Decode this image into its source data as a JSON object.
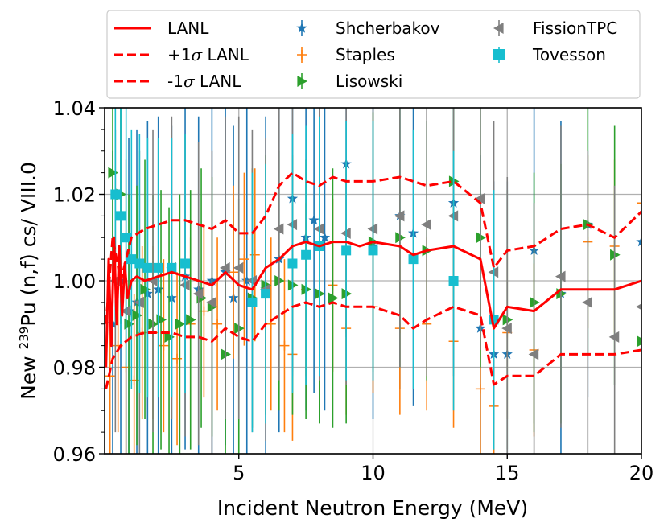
{
  "chart_data": {
    "type": "scatter",
    "xlabel": "Incident Neutron Energy (MeV)",
    "ylabel_parts": {
      "prefix": "New ",
      "isotope_sup": "239",
      "suffix": "Pu (n,f) cs/ VIII.0"
    },
    "xlim": [
      0,
      20
    ],
    "ylim": [
      0.96,
      1.04
    ],
    "x_ticks": [
      5,
      10,
      15,
      20
    ],
    "x_tick_labels": [
      "5",
      "10",
      "15",
      "20"
    ],
    "y_ticks": [
      0.96,
      0.98,
      1.0,
      1.02,
      1.04
    ],
    "y_tick_labels": [
      "0.96",
      "0.98",
      "1.00",
      "1.02",
      "1.04"
    ],
    "grid": true,
    "legend_position": "top",
    "lines": [
      {
        "name": "LANL",
        "label_main": "LANL",
        "label_prefix": "",
        "sigma": "",
        "color": "#ff0000",
        "dashed": false,
        "points": [
          [
            0.05,
            0.98
          ],
          [
            0.15,
            1.005
          ],
          [
            0.25,
            0.985
          ],
          [
            0.35,
            1.01
          ],
          [
            0.45,
            0.99
          ],
          [
            0.55,
            1.008
          ],
          [
            0.65,
            0.992
          ],
          [
            0.75,
            1.004
          ],
          [
            0.85,
            0.996
          ],
          [
            1.0,
            1.0
          ],
          [
            1.2,
            1.001
          ],
          [
            1.5,
            1.0
          ],
          [
            2.0,
            1.001
          ],
          [
            2.5,
            1.002
          ],
          [
            3.0,
            1.001
          ],
          [
            3.5,
            1.0
          ],
          [
            4.0,
            0.999
          ],
          [
            4.5,
            1.002
          ],
          [
            5.0,
            0.999
          ],
          [
            5.5,
            0.998
          ],
          [
            6.0,
            1.003
          ],
          [
            6.5,
            1.005
          ],
          [
            7.0,
            1.008
          ],
          [
            7.5,
            1.009
          ],
          [
            8.0,
            1.008
          ],
          [
            8.5,
            1.009
          ],
          [
            9.0,
            1.009
          ],
          [
            9.5,
            1.008
          ],
          [
            10.0,
            1.009
          ],
          [
            11.0,
            1.008
          ],
          [
            11.5,
            1.006
          ],
          [
            12.0,
            1.007
          ],
          [
            13.0,
            1.008
          ],
          [
            14.0,
            1.005
          ],
          [
            14.5,
            0.989
          ],
          [
            15.0,
            0.994
          ],
          [
            16.0,
            0.993
          ],
          [
            17.0,
            0.998
          ],
          [
            18.0,
            0.998
          ],
          [
            19.0,
            0.998
          ],
          [
            20.0,
            1.0
          ]
        ]
      },
      {
        "name": "+1σ LANL",
        "label_main": " LANL",
        "label_prefix": "+1",
        "sigma": "σ",
        "color": "#ff0000",
        "dashed": true,
        "points": [
          [
            0.05,
            0.99
          ],
          [
            0.3,
            1.01
          ],
          [
            0.6,
            1.0
          ],
          [
            1.0,
            1.01
          ],
          [
            1.5,
            1.012
          ],
          [
            2.0,
            1.013
          ],
          [
            2.5,
            1.014
          ],
          [
            3.0,
            1.014
          ],
          [
            3.5,
            1.013
          ],
          [
            4.0,
            1.012
          ],
          [
            4.5,
            1.014
          ],
          [
            5.0,
            1.011
          ],
          [
            5.5,
            1.011
          ],
          [
            6.0,
            1.015
          ],
          [
            6.5,
            1.022
          ],
          [
            7.0,
            1.025
          ],
          [
            7.5,
            1.023
          ],
          [
            8.0,
            1.022
          ],
          [
            8.5,
            1.024
          ],
          [
            9.0,
            1.023
          ],
          [
            10.0,
            1.023
          ],
          [
            11.0,
            1.024
          ],
          [
            12.0,
            1.022
          ],
          [
            13.0,
            1.023
          ],
          [
            14.0,
            1.018
          ],
          [
            14.5,
            1.003
          ],
          [
            15.0,
            1.007
          ],
          [
            16.0,
            1.008
          ],
          [
            17.0,
            1.012
          ],
          [
            18.0,
            1.013
          ],
          [
            19.0,
            1.01
          ],
          [
            20.0,
            1.016
          ]
        ]
      },
      {
        "name": "-1σ LANL",
        "label_main": " LANL",
        "label_prefix": "-1",
        "sigma": "σ",
        "color": "#ff0000",
        "dashed": true,
        "points": [
          [
            0.05,
            0.975
          ],
          [
            0.3,
            0.982
          ],
          [
            0.6,
            0.985
          ],
          [
            1.0,
            0.987
          ],
          [
            1.5,
            0.988
          ],
          [
            2.0,
            0.988
          ],
          [
            2.5,
            0.988
          ],
          [
            3.0,
            0.987
          ],
          [
            3.5,
            0.987
          ],
          [
            4.0,
            0.986
          ],
          [
            4.5,
            0.989
          ],
          [
            5.0,
            0.987
          ],
          [
            5.5,
            0.986
          ],
          [
            6.0,
            0.99
          ],
          [
            6.5,
            0.992
          ],
          [
            7.0,
            0.994
          ],
          [
            7.5,
            0.995
          ],
          [
            8.0,
            0.994
          ],
          [
            8.5,
            0.995
          ],
          [
            9.0,
            0.994
          ],
          [
            10.0,
            0.994
          ],
          [
            11.0,
            0.992
          ],
          [
            11.5,
            0.989
          ],
          [
            12.0,
            0.991
          ],
          [
            13.0,
            0.994
          ],
          [
            14.0,
            0.992
          ],
          [
            14.5,
            0.976
          ],
          [
            15.0,
            0.978
          ],
          [
            16.0,
            0.978
          ],
          [
            17.0,
            0.983
          ],
          [
            18.0,
            0.983
          ],
          [
            19.0,
            0.983
          ],
          [
            20.0,
            0.984
          ]
        ]
      }
    ],
    "series": [
      {
        "name": "Shcherbakov",
        "color": "#1f77b4",
        "marker": "star",
        "err": 0.04,
        "points": [
          [
            0.3,
            0.99
          ],
          [
            0.6,
            1.0
          ],
          [
            0.9,
            0.993
          ],
          [
            1.2,
            0.995
          ],
          [
            1.6,
            0.997
          ],
          [
            2.0,
            0.998
          ],
          [
            2.5,
            0.996
          ],
          [
            3.0,
            1.001
          ],
          [
            3.5,
            0.998
          ],
          [
            4.0,
            1.0
          ],
          [
            4.5,
            1.002
          ],
          [
            4.8,
            0.996
          ],
          [
            5.3,
            1.0
          ],
          [
            6.0,
            0.998
          ],
          [
            6.5,
            1.005
          ],
          [
            7.0,
            1.019
          ],
          [
            7.5,
            1.01
          ],
          [
            7.8,
            1.014
          ],
          [
            8.2,
            1.01
          ],
          [
            9.0,
            1.027
          ],
          [
            10.0,
            1.008
          ],
          [
            11.0,
            1.015
          ],
          [
            11.5,
            1.011
          ],
          [
            13.0,
            1.018
          ],
          [
            14.0,
            0.989
          ],
          [
            14.5,
            0.983
          ],
          [
            15.0,
            0.983
          ],
          [
            16.0,
            1.007
          ],
          [
            17.0,
            0.997
          ],
          [
            18.0,
            1.013
          ],
          [
            20.0,
            1.009
          ]
        ]
      },
      {
        "name": "Staples",
        "color": "#ff7f0e",
        "marker": "plus",
        "err": 0.02,
        "points": [
          [
            0.2,
            0.978
          ],
          [
            0.5,
            0.985
          ],
          [
            0.8,
            0.98
          ],
          [
            1.1,
            0.977
          ],
          [
            1.4,
            0.988
          ],
          [
            1.8,
            0.988
          ],
          [
            2.2,
            0.985
          ],
          [
            2.7,
            0.982
          ],
          [
            3.2,
            0.99
          ],
          [
            3.7,
            0.993
          ],
          [
            4.2,
            0.99
          ],
          [
            4.8,
            1.002
          ],
          [
            5.2,
            1.005
          ],
          [
            5.6,
            1.006
          ],
          [
            6.2,
            0.99
          ],
          [
            6.7,
            0.985
          ],
          [
            7.0,
            0.983
          ],
          [
            7.5,
            0.998
          ],
          [
            8.5,
            0.999
          ],
          [
            9.0,
            0.989
          ],
          [
            10.0,
            0.994
          ],
          [
            11.0,
            0.989
          ],
          [
            12.0,
            0.99
          ],
          [
            13.0,
            0.986
          ],
          [
            14.0,
            0.975
          ],
          [
            14.5,
            0.971
          ],
          [
            15.0,
            0.988
          ],
          [
            16.0,
            0.984
          ],
          [
            18.0,
            1.009
          ],
          [
            19.0,
            1.008
          ],
          [
            20.0,
            1.018
          ]
        ]
      },
      {
        "name": "Lisowski",
        "color": "#2ca02c",
        "marker": "triangle-right",
        "err": 0.03,
        "points": [
          [
            0.3,
            1.025
          ],
          [
            0.6,
            1.02
          ],
          [
            0.9,
            0.99
          ],
          [
            1.2,
            0.992
          ],
          [
            1.5,
            0.998
          ],
          [
            1.8,
            0.99
          ],
          [
            2.1,
            0.991
          ],
          [
            2.4,
            0.987
          ],
          [
            2.8,
            0.99
          ],
          [
            3.2,
            0.991
          ],
          [
            3.6,
            0.996
          ],
          [
            4.0,
            0.994
          ],
          [
            4.5,
            0.983
          ],
          [
            5.0,
            0.989
          ],
          [
            5.5,
            0.996
          ],
          [
            6.0,
            0.999
          ],
          [
            6.5,
            1.0
          ],
          [
            7.0,
            0.999
          ],
          [
            7.5,
            0.998
          ],
          [
            8.0,
            0.997
          ],
          [
            8.5,
            0.996
          ],
          [
            9.0,
            0.997
          ],
          [
            10.0,
            1.009
          ],
          [
            11.0,
            1.01
          ],
          [
            12.0,
            1.007
          ],
          [
            13.0,
            1.023
          ],
          [
            14.0,
            1.01
          ],
          [
            15.0,
            0.991
          ],
          [
            16.0,
            0.995
          ],
          [
            17.0,
            0.997
          ],
          [
            18.0,
            1.013
          ],
          [
            19.0,
            1.006
          ],
          [
            20.0,
            0.986
          ]
        ]
      },
      {
        "name": "FissionTPC",
        "color": "#7f7f7f",
        "marker": "triangle-left",
        "err": 0.035,
        "points": [
          [
            0.4,
            1.0
          ],
          [
            0.8,
            0.993
          ],
          [
            1.3,
            0.995
          ],
          [
            1.8,
            1.0
          ],
          [
            2.5,
            1.003
          ],
          [
            3.0,
            0.999
          ],
          [
            3.5,
            0.997
          ],
          [
            4.0,
            0.995
          ],
          [
            4.5,
            1.003
          ],
          [
            5.0,
            1.003
          ],
          [
            5.5,
            1.0
          ],
          [
            6.0,
            0.998
          ],
          [
            6.5,
            1.012
          ],
          [
            7.0,
            1.013
          ],
          [
            8.0,
            1.012
          ],
          [
            9.0,
            1.011
          ],
          [
            10.0,
            1.012
          ],
          [
            11.0,
            1.015
          ],
          [
            12.0,
            1.013
          ],
          [
            13.0,
            1.015
          ],
          [
            14.0,
            1.019
          ],
          [
            14.5,
            1.002
          ],
          [
            15.0,
            0.989
          ],
          [
            16.0,
            0.983
          ],
          [
            17.0,
            1.001
          ],
          [
            18.0,
            0.995
          ],
          [
            19.0,
            0.987
          ],
          [
            20.0,
            0.994
          ]
        ]
      },
      {
        "name": "Tovesson",
        "color": "#17becf",
        "marker": "square",
        "err": 0.03,
        "points": [
          [
            0.4,
            1.02
          ],
          [
            0.6,
            1.015
          ],
          [
            0.8,
            1.01
          ],
          [
            1.0,
            1.005
          ],
          [
            1.3,
            1.004
          ],
          [
            1.6,
            1.003
          ],
          [
            2.0,
            1.003
          ],
          [
            2.5,
            1.003
          ],
          [
            3.0,
            1.004
          ],
          [
            5.5,
            0.995
          ],
          [
            6.0,
            0.997
          ],
          [
            7.0,
            1.004
          ],
          [
            7.5,
            1.006
          ],
          [
            8.0,
            1.008
          ],
          [
            9.0,
            1.007
          ],
          [
            10.0,
            1.007
          ],
          [
            11.5,
            1.005
          ],
          [
            13.0,
            1.0
          ],
          [
            14.5,
            0.991
          ]
        ]
      }
    ]
  }
}
